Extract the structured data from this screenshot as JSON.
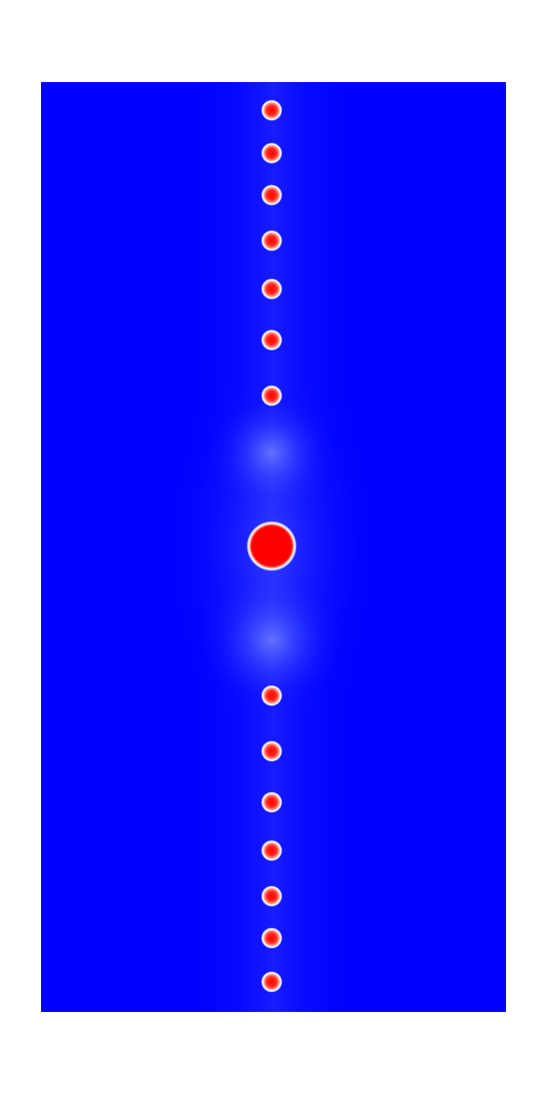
{
  "figure": {
    "background_color": "#ffffff",
    "field_color": "#0000ff",
    "glow_color": "#7e8cff",
    "spot_core_color": "#ff0000",
    "spot_mid_color": "#ff8a80",
    "spot_ring_color": "#ffffff",
    "spot_count": 15,
    "central_spot_count": 1
  }
}
